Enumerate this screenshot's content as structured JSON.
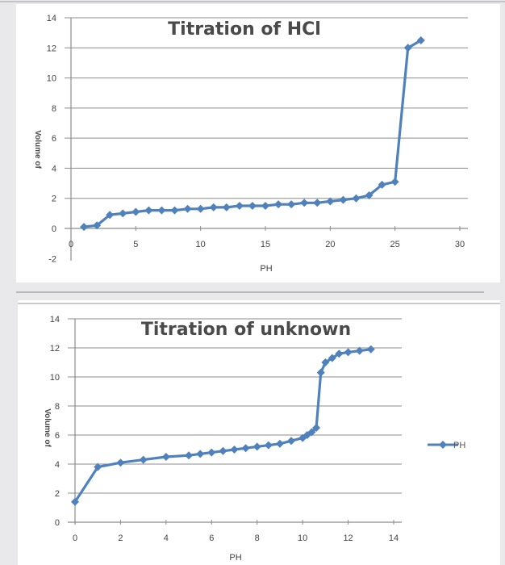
{
  "chart_data": [
    {
      "type": "scatter",
      "title": "Titration of HCl",
      "xlabel": "PH",
      "ylabel": "Volume of",
      "xlim": [
        0,
        30
      ],
      "ylim": [
        -2,
        14
      ],
      "xticks": [
        0,
        5,
        10,
        15,
        20,
        25,
        30
      ],
      "yticks": [
        -2,
        0,
        2,
        4,
        6,
        8,
        10,
        12,
        14
      ],
      "grid": "horizontal",
      "marker": "diamond",
      "color": "#4f81bd",
      "x": [
        1,
        2,
        3,
        4,
        5,
        6,
        7,
        8,
        9,
        10,
        11,
        12,
        13,
        14,
        15,
        16,
        17,
        18,
        19,
        20,
        21,
        22,
        23,
        24,
        25,
        26,
        27
      ],
      "y": [
        0.1,
        0.2,
        0.9,
        1.0,
        1.1,
        1.2,
        1.2,
        1.2,
        1.3,
        1.3,
        1.4,
        1.4,
        1.5,
        1.5,
        1.5,
        1.6,
        1.6,
        1.7,
        1.7,
        1.8,
        1.9,
        2.0,
        2.2,
        2.9,
        3.1,
        12.0,
        12.5
      ]
    },
    {
      "type": "scatter",
      "title": "Titration of unknown",
      "xlabel": "PH",
      "ylabel": "Volume of",
      "xlim": [
        0,
        14
      ],
      "ylim": [
        0,
        14
      ],
      "xticks": [
        0,
        2,
        4,
        6,
        8,
        10,
        12,
        14
      ],
      "yticks": [
        0,
        2,
        4,
        6,
        8,
        10,
        12,
        14
      ],
      "grid": "horizontal",
      "legend": "right",
      "marker": "diamond",
      "color": "#4f81bd",
      "series": [
        {
          "name": "PH",
          "x": [
            0,
            1,
            2,
            3,
            4,
            5,
            5.5,
            6,
            6.5,
            7,
            7.5,
            8,
            8.5,
            9,
            9.5,
            10,
            10.2,
            10.4,
            10.6,
            10.8,
            11,
            11.3,
            11.6,
            12,
            12.5,
            13
          ],
          "y": [
            1.4,
            3.8,
            4.1,
            4.3,
            4.5,
            4.6,
            4.7,
            4.8,
            4.9,
            5.0,
            5.1,
            5.2,
            5.3,
            5.4,
            5.6,
            5.8,
            6.0,
            6.2,
            6.5,
            10.3,
            11.0,
            11.3,
            11.6,
            11.7,
            11.8,
            11.9
          ]
        }
      ]
    }
  ]
}
